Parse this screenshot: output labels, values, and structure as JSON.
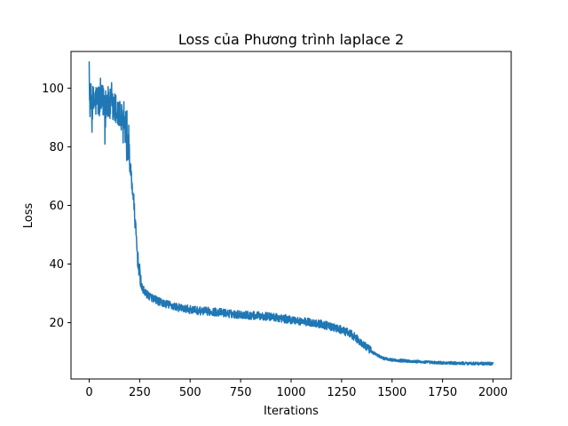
{
  "chart_data": {
    "type": "line",
    "title": "Loss của Phương trình laplace 2",
    "xlabel": "Iterations",
    "ylabel": "Loss",
    "xlim": [
      -90,
      2090
    ],
    "ylim": [
      0.8,
      112.5
    ],
    "x_ticks": [
      0,
      250,
      500,
      750,
      1000,
      1250,
      1500,
      1750,
      2000
    ],
    "y_ticks": [
      20,
      40,
      60,
      80,
      100
    ],
    "grid": false,
    "legend": "none",
    "series": [
      {
        "name": "loss",
        "color": "#1f77b4",
        "points": [
          [
            0,
            96
          ],
          [
            20,
            95
          ],
          [
            40,
            96
          ],
          [
            60,
            95
          ],
          [
            80,
            96
          ],
          [
            100,
            94
          ],
          [
            120,
            93
          ],
          [
            140,
            92
          ],
          [
            160,
            89
          ],
          [
            180,
            84
          ],
          [
            200,
            75
          ],
          [
            220,
            62
          ],
          [
            240,
            42
          ],
          [
            260,
            32
          ],
          [
            280,
            30
          ],
          [
            300,
            29
          ],
          [
            350,
            27
          ],
          [
            400,
            26
          ],
          [
            450,
            25
          ],
          [
            500,
            24.5
          ],
          [
            550,
            24
          ],
          [
            600,
            23.8
          ],
          [
            650,
            23.5
          ],
          [
            700,
            23
          ],
          [
            750,
            22.8
          ],
          [
            800,
            22.5
          ],
          [
            850,
            22.3
          ],
          [
            900,
            22
          ],
          [
            950,
            21.5
          ],
          [
            1000,
            21
          ],
          [
            1050,
            20.5
          ],
          [
            1100,
            20
          ],
          [
            1150,
            19.5
          ],
          [
            1200,
            18.5
          ],
          [
            1250,
            17.5
          ],
          [
            1300,
            16
          ],
          [
            1350,
            13
          ],
          [
            1400,
            10
          ],
          [
            1450,
            8
          ],
          [
            1500,
            7.3
          ],
          [
            1600,
            6.8
          ],
          [
            1700,
            6.4
          ],
          [
            1800,
            6.2
          ],
          [
            1900,
            6.1
          ],
          [
            2000,
            6
          ]
        ]
      }
    ]
  }
}
